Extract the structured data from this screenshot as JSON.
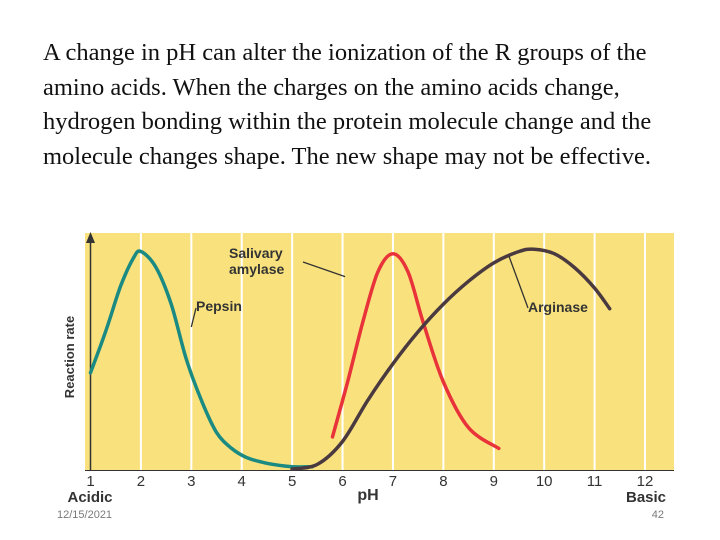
{
  "slide": {
    "body_text": "A change in pH can alter the ionization of the R groups of the amino acids. When the charges on the amino acids change, hydrogen bonding within the protein molecule change and the molecule changes shape. The new shape may not be effective.",
    "date": "12/15/2021",
    "page_number": "42"
  },
  "colors": {
    "plot_background": "#f9e27d",
    "pepsin": "#1a8a82",
    "salivary_amylase": "#e8333a",
    "arginase": "#4a3a40"
  },
  "chart_data": {
    "type": "line",
    "title": "",
    "xlabel": "pH",
    "ylabel": "Reaction rate",
    "x_end_labels": {
      "left": "Acidic",
      "right": "Basic"
    },
    "xlim": [
      1,
      12
    ],
    "ylim": [
      0,
      1
    ],
    "x_ticks": [
      "1",
      "2",
      "3",
      "4",
      "5",
      "6",
      "7",
      "8",
      "9",
      "10",
      "11",
      "12"
    ],
    "grid": "vertical",
    "series": [
      {
        "name": "Pepsin",
        "color": "#1a8a82",
        "points": [
          [
            1,
            0.42
          ],
          [
            1.3,
            0.6
          ],
          [
            1.6,
            0.8
          ],
          [
            1.85,
            0.92
          ],
          [
            2,
            0.95
          ],
          [
            2.3,
            0.88
          ],
          [
            2.6,
            0.72
          ],
          [
            2.9,
            0.48
          ],
          [
            3.2,
            0.3
          ],
          [
            3.5,
            0.16
          ],
          [
            3.8,
            0.09
          ],
          [
            4.1,
            0.05
          ],
          [
            4.5,
            0.025
          ],
          [
            5,
            0.01
          ],
          [
            5.4,
            0.01
          ]
        ]
      },
      {
        "name": "Salivary amylase",
        "color": "#e8333a",
        "points": [
          [
            5.8,
            0.14
          ],
          [
            6.1,
            0.38
          ],
          [
            6.4,
            0.64
          ],
          [
            6.7,
            0.86
          ],
          [
            7,
            0.94
          ],
          [
            7.3,
            0.86
          ],
          [
            7.6,
            0.64
          ],
          [
            8,
            0.38
          ],
          [
            8.5,
            0.18
          ],
          [
            9.1,
            0.09
          ]
        ]
      },
      {
        "name": "Arginase",
        "color": "#4a3a40",
        "points": [
          [
            5,
            0
          ],
          [
            5.5,
            0.02
          ],
          [
            6,
            0.12
          ],
          [
            6.5,
            0.3
          ],
          [
            7,
            0.46
          ],
          [
            7.5,
            0.6
          ],
          [
            8,
            0.72
          ],
          [
            8.5,
            0.82
          ],
          [
            9,
            0.9
          ],
          [
            9.5,
            0.95
          ],
          [
            9.8,
            0.96
          ],
          [
            10.2,
            0.94
          ],
          [
            10.6,
            0.88
          ],
          [
            11,
            0.79
          ],
          [
            11.3,
            0.7
          ]
        ]
      }
    ],
    "annotations": [
      {
        "text_lines": [
          "Salivary",
          "amylase"
        ],
        "series": "Salivary amylase"
      },
      {
        "text_lines": [
          "Pepsin"
        ],
        "series": "Pepsin"
      },
      {
        "text_lines": [
          "Arginase"
        ],
        "series": "Arginase"
      }
    ]
  }
}
